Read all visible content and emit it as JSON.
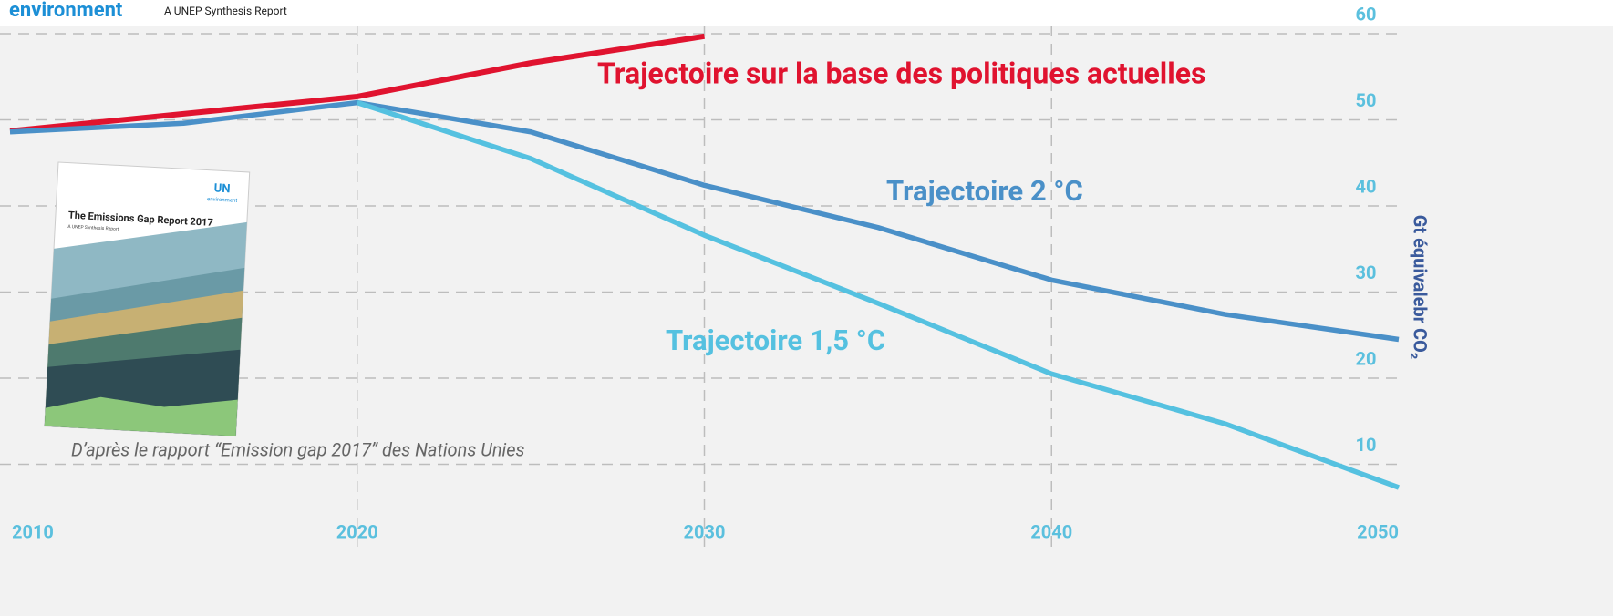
{
  "header": {
    "brand": "environment",
    "subtitle": "A UNEP Synthesis Report"
  },
  "cover": {
    "logo": "UN",
    "logo_sub": "environment",
    "title": "The Emissions Gap Report 2017",
    "subtitle": "A UNEP Synthesis Report"
  },
  "chart_data": {
    "type": "line",
    "x": [
      2010,
      2015,
      2020,
      2025,
      2030,
      2035,
      2040,
      2045,
      2050
    ],
    "series": [
      {
        "name": "Trajectoire sur la base des politiques actuelles",
        "color": "#e0132f",
        "values": [
          48.7,
          50.7,
          52.7,
          56.6,
          59.7,
          null,
          null,
          null,
          null
        ]
      },
      {
        "name": "Trajectoire 2 °C",
        "color": "#4a90c8",
        "values": [
          48.6,
          49.6,
          52.0,
          48.6,
          42.4,
          37.5,
          31.4,
          27.4,
          24.5
        ]
      },
      {
        "name": "Trajectoire 1,5 °C",
        "color": "#55c1e0",
        "values": [
          null,
          null,
          52.0,
          45.5,
          36.6,
          28.7,
          20.5,
          14.7,
          7.3
        ]
      }
    ],
    "xlim": [
      2010,
      2050
    ],
    "xticks": [
      2010,
      2020,
      2030,
      2040,
      2050
    ],
    "ylim": [
      0,
      60
    ],
    "yticks": [
      10,
      20,
      30,
      40,
      50,
      60
    ],
    "ylabel": "Gt équivalebr CO₂",
    "note": "D’après le rapport “Emission gap 2017” des Nations Unies",
    "grid": true
  }
}
